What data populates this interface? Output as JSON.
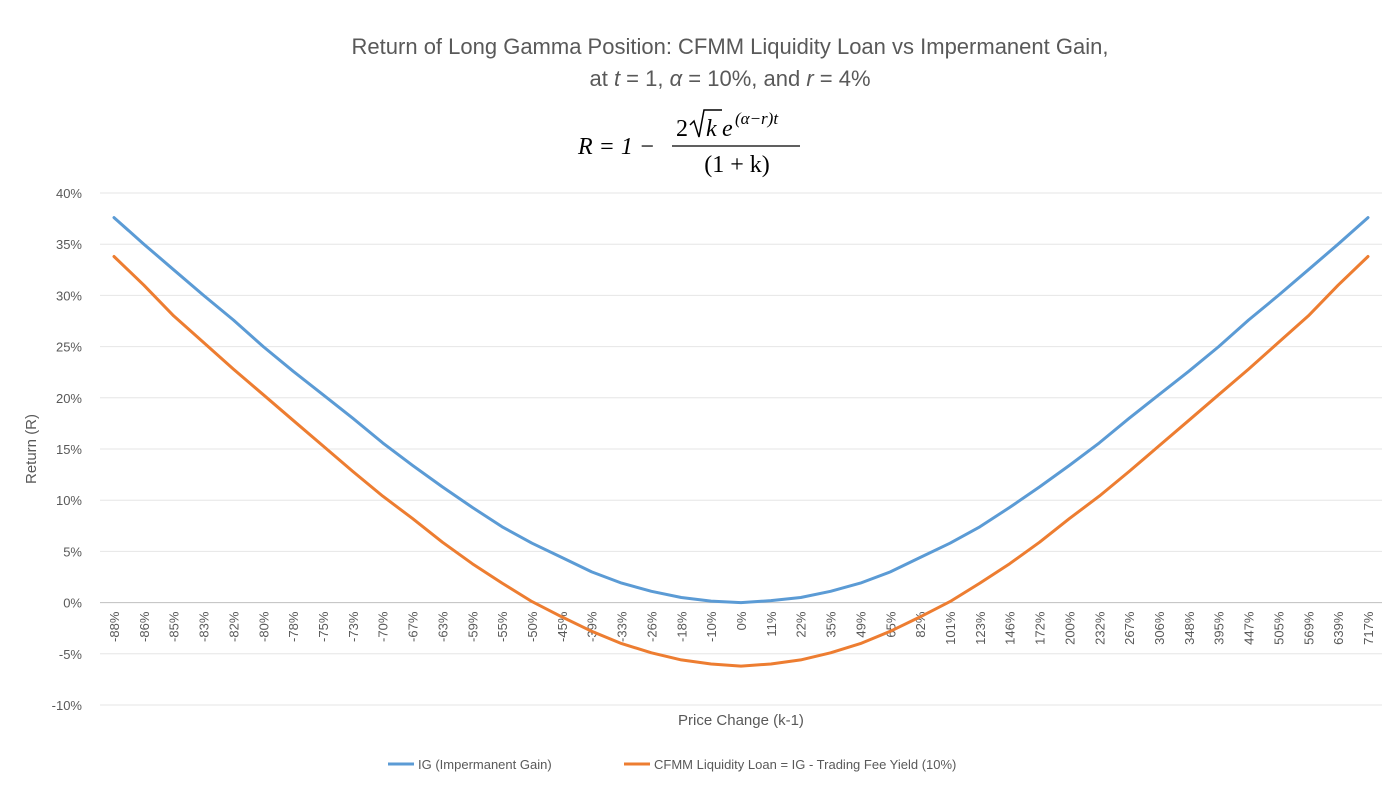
{
  "chart_data": {
    "type": "line",
    "title_line1": "Return of Long Gamma Position: CFMM Liquidity Loan vs Impermanent Gain,",
    "title_line2_parts": [
      {
        "text": "at ",
        "italic": false
      },
      {
        "text": "t",
        "italic": true
      },
      {
        "text": " = 1, ",
        "italic": false
      },
      {
        "text": "α",
        "italic": true
      },
      {
        "text": " = 10%, and ",
        "italic": false
      },
      {
        "text": "r",
        "italic": true
      },
      {
        "text": " = 4%",
        "italic": false
      }
    ],
    "formula": {
      "lhs": "R = 1 −",
      "numerator_coef": "2",
      "radicand": "k",
      "exp_base": "e",
      "exponent": "(α−r)t",
      "denominator": "(1 + k)"
    },
    "xlabel": "Price Change (k-1)",
    "ylabel": "Return (R)",
    "ylim": [
      -10,
      40
    ],
    "yticks": [
      "40%",
      "35%",
      "30%",
      "25%",
      "20%",
      "15%",
      "10%",
      "5%",
      "0%",
      "-5%",
      "-10%"
    ],
    "ytick_values": [
      40,
      35,
      30,
      25,
      20,
      15,
      10,
      5,
      0,
      -5,
      -10
    ],
    "categories": [
      "-88%",
      "-86%",
      "-85%",
      "-83%",
      "-82%",
      "-80%",
      "-78%",
      "-75%",
      "-73%",
      "-70%",
      "-67%",
      "-63%",
      "-59%",
      "-55%",
      "-50%",
      "-45%",
      "-39%",
      "-33%",
      "-26%",
      "-18%",
      "-10%",
      "0%",
      "11%",
      "22%",
      "35%",
      "49%",
      "65%",
      "82%",
      "101%",
      "123%",
      "146%",
      "172%",
      "200%",
      "232%",
      "267%",
      "306%",
      "348%",
      "395%",
      "447%",
      "505%",
      "569%",
      "639%",
      "717%"
    ],
    "grid": true,
    "legend_position": "bottom",
    "series": [
      {
        "name": "IG (Impermanent Gain)",
        "color": "#5B9BD5",
        "values": [
          37.6,
          35.0,
          32.5,
          30.0,
          27.6,
          25.0,
          22.6,
          20.3,
          18.0,
          15.6,
          13.4,
          11.3,
          9.3,
          7.4,
          5.8,
          4.4,
          3.0,
          1.9,
          1.1,
          0.5,
          0.15,
          0.0,
          0.2,
          0.5,
          1.1,
          1.9,
          3.0,
          4.4,
          5.8,
          7.4,
          9.3,
          11.3,
          13.4,
          15.6,
          18.0,
          20.3,
          22.6,
          25.0,
          27.6,
          30.0,
          32.5,
          35.0,
          37.6
        ]
      },
      {
        "name": "CFMM Liquidity Loan = IG - Trading Fee Yield (10%)",
        "color": "#ED7D31",
        "values": [
          33.8,
          31.0,
          28.0,
          25.4,
          22.8,
          20.3,
          17.8,
          15.3,
          12.8,
          10.4,
          8.2,
          5.9,
          3.8,
          1.9,
          0.1,
          -1.4,
          -2.8,
          -4.0,
          -4.9,
          -5.6,
          -6.0,
          -6.2,
          -6.0,
          -5.6,
          -4.9,
          -4.0,
          -2.8,
          -1.4,
          0.1,
          1.9,
          3.8,
          5.9,
          8.2,
          10.4,
          12.8,
          15.3,
          17.8,
          20.3,
          22.8,
          25.4,
          28.0,
          31.0,
          33.8
        ]
      }
    ]
  }
}
